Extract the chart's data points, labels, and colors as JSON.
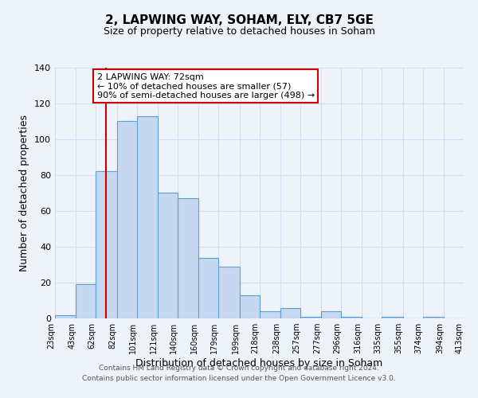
{
  "title": "2, LAPWING WAY, SOHAM, ELY, CB7 5GE",
  "subtitle": "Size of property relative to detached houses in Soham",
  "xlabel": "Distribution of detached houses by size in Soham",
  "ylabel": "Number of detached properties",
  "bar_color": "#c5d8f0",
  "bar_edge_color": "#5a9fd4",
  "bg_color": "#eef3fa",
  "grid_color": "#d0dff0",
  "bins": [
    23,
    43,
    62,
    82,
    101,
    121,
    140,
    160,
    179,
    199,
    218,
    238,
    257,
    277,
    296,
    316,
    335,
    355,
    374,
    394,
    413
  ],
  "counts": [
    2,
    19,
    82,
    110,
    113,
    70,
    67,
    34,
    29,
    13,
    4,
    6,
    1,
    4,
    1,
    0,
    1,
    0,
    1,
    0
  ],
  "tick_labels": [
    "23sqm",
    "43sqm",
    "62sqm",
    "82sqm",
    "101sqm",
    "121sqm",
    "140sqm",
    "160sqm",
    "179sqm",
    "199sqm",
    "218sqm",
    "238sqm",
    "257sqm",
    "277sqm",
    "296sqm",
    "316sqm",
    "335sqm",
    "355sqm",
    "374sqm",
    "394sqm",
    "413sqm"
  ],
  "vline_x": 72,
  "vline_color": "#cc0000",
  "annotation_text": "2 LAPWING WAY: 72sqm\n← 10% of detached houses are smaller (57)\n90% of semi-detached houses are larger (498) →",
  "annotation_box_color": "#ffffff",
  "annotation_box_edge": "#cc0000",
  "ylim": [
    0,
    140
  ],
  "footer1": "Contains HM Land Registry data © Crown copyright and database right 2024.",
  "footer2": "Contains public sector information licensed under the Open Government Licence v3.0."
}
